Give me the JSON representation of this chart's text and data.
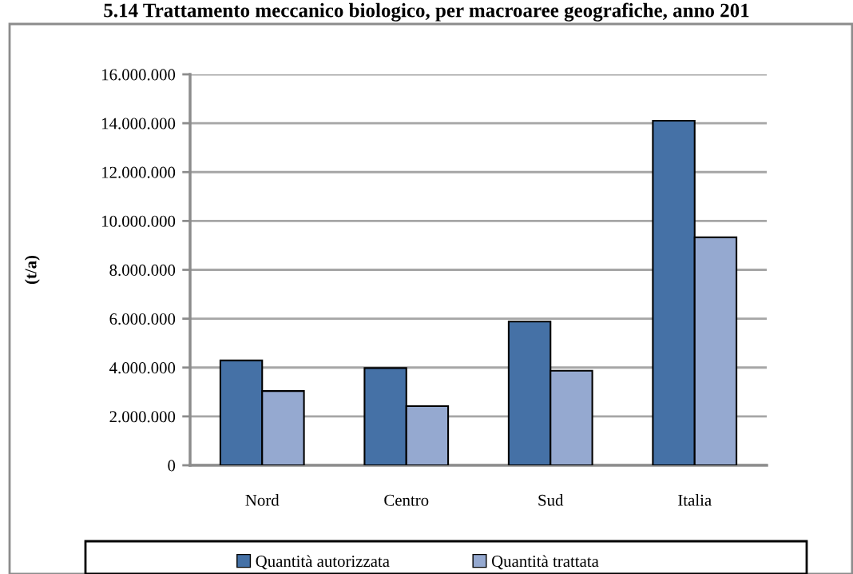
{
  "chart_data": {
    "type": "bar",
    "title": "5.14 Trattamento meccanico biologico, per macroaree geografiche, anno 201",
    "ylabel": "(t/a)",
    "categories": [
      "Nord",
      "Centro",
      "Sud",
      "Italia"
    ],
    "series": [
      {
        "name": "Quantità autorizzata",
        "color": "#4571a6",
        "values": [
          4290000,
          3980000,
          5880000,
          14100000
        ]
      },
      {
        "name": "Quantità trattata",
        "color": "#95a9d0",
        "values": [
          3040000,
          2420000,
          3870000,
          9330000
        ]
      }
    ],
    "ylim": [
      0,
      16000000
    ],
    "yticks": [
      0,
      {
        "value": 2000000,
        "label": "2.000.000"
      },
      {
        "value": 4000000,
        "label": "4.000.000"
      },
      {
        "value": 6000000,
        "label": "6.000.000"
      },
      {
        "value": 8000000,
        "label": "8.000.000"
      },
      {
        "value": 10000000,
        "label": "10.000.000"
      },
      {
        "value": 12000000,
        "label": "12.000.000"
      },
      {
        "value": 14000000,
        "label": "14.000.000"
      },
      {
        "value": 16000000,
        "label": "16.000.000"
      }
    ],
    "grid": "y",
    "legend": "bottom"
  }
}
